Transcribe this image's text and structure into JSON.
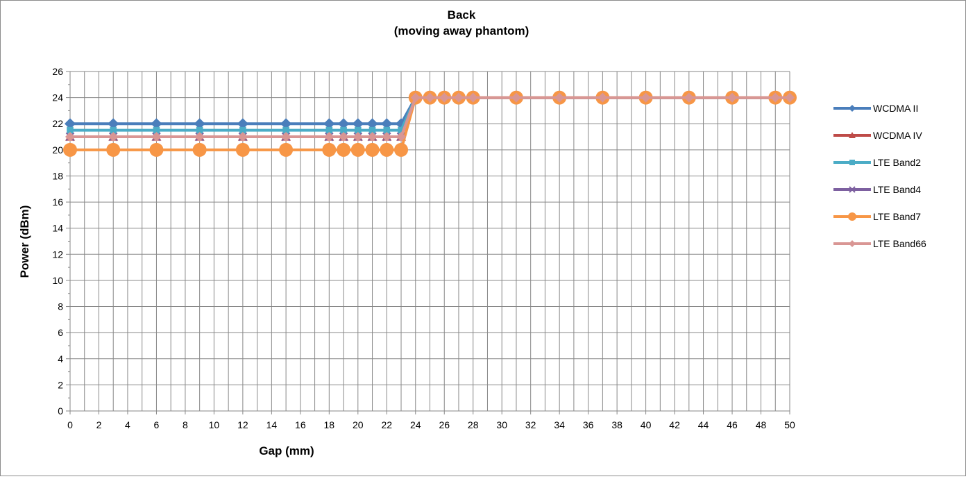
{
  "chart_data": {
    "type": "line",
    "title": "Back",
    "subtitle": "(moving away phantom)",
    "xlabel": "Gap (mm)",
    "ylabel": "Power (dBm)",
    "xlim": [
      0,
      50
    ],
    "ylim": [
      0,
      26
    ],
    "x_ticks": [
      0,
      2,
      4,
      6,
      8,
      10,
      12,
      14,
      16,
      18,
      20,
      22,
      24,
      26,
      28,
      30,
      32,
      34,
      36,
      38,
      40,
      42,
      44,
      46,
      48,
      50
    ],
    "y_ticks": [
      0,
      2,
      4,
      6,
      8,
      10,
      12,
      14,
      16,
      18,
      20,
      22,
      24,
      26
    ],
    "grid": true,
    "legend_position": "right",
    "x": [
      0,
      3,
      6,
      9,
      12,
      15,
      18,
      19,
      20,
      21,
      22,
      23,
      24,
      25,
      26,
      27,
      28,
      31,
      34,
      37,
      40,
      43,
      46,
      49,
      50
    ],
    "series": [
      {
        "name": "WCDMA II",
        "color": "#4a7ebb",
        "marker": "diamond",
        "values": [
          22,
          22,
          22,
          22,
          22,
          22,
          22,
          22,
          22,
          22,
          22,
          22,
          24,
          24,
          24,
          24,
          24,
          24,
          24,
          24,
          24,
          24,
          24,
          24,
          24
        ]
      },
      {
        "name": "WCDMA IV",
        "color": "#be4b48",
        "marker": "triangle",
        "values": [
          21,
          21,
          21,
          21,
          21,
          21,
          21,
          21,
          21,
          21,
          21,
          21,
          24,
          24,
          24,
          24,
          24,
          24,
          24,
          24,
          24,
          24,
          24,
          24,
          24
        ]
      },
      {
        "name": "LTE Band2",
        "color": "#4bacc6",
        "marker": "square",
        "values": [
          21.5,
          21.5,
          21.5,
          21.5,
          21.5,
          21.5,
          21.5,
          21.5,
          21.5,
          21.5,
          21.5,
          21.5,
          24,
          24,
          24,
          24,
          24,
          24,
          24,
          24,
          24,
          24,
          24,
          24,
          24
        ]
      },
      {
        "name": "LTE Band4",
        "color": "#7d60a0",
        "marker": "x",
        "values": [
          21,
          21,
          21,
          21,
          21,
          21,
          21,
          21,
          21,
          21,
          21,
          21,
          24,
          24,
          24,
          24,
          24,
          24,
          24,
          24,
          24,
          24,
          24,
          24,
          24
        ]
      },
      {
        "name": "LTE Band7",
        "color": "#f79646",
        "marker": "circle",
        "values": [
          20,
          20,
          20,
          20,
          20,
          20,
          20,
          20,
          20,
          20,
          20,
          20,
          24,
          24,
          24,
          24,
          24,
          24,
          24,
          24,
          24,
          24,
          24,
          24,
          24
        ]
      },
      {
        "name": "LTE Band66",
        "color": "#d99694",
        "marker": "diamond",
        "values": [
          21,
          21,
          21,
          21,
          21,
          21,
          21,
          21,
          21,
          21,
          21,
          21,
          24,
          24,
          24,
          24,
          24,
          24,
          24,
          24,
          24,
          24,
          24,
          24,
          24
        ]
      }
    ]
  }
}
